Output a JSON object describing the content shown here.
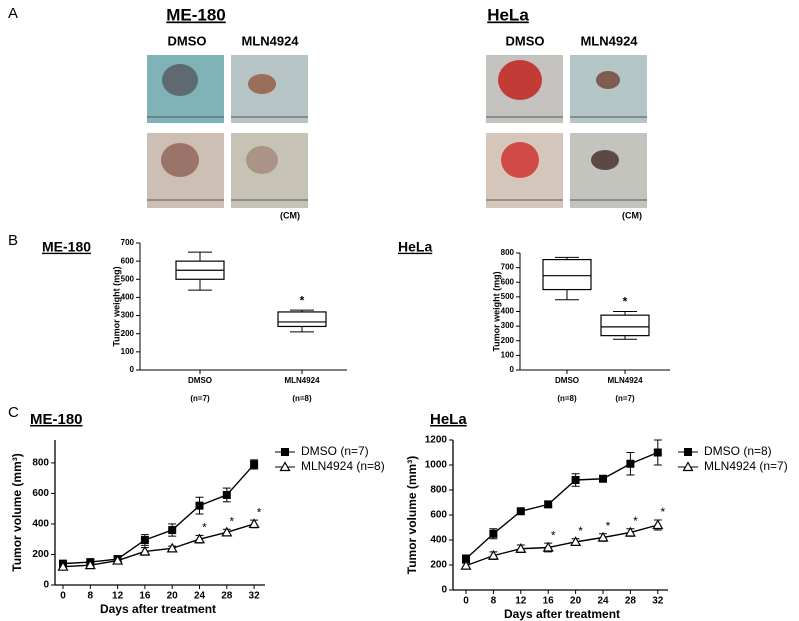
{
  "panels": {
    "a": {
      "label": "A",
      "groups": [
        {
          "title": "ME-180",
          "columns": [
            "DMSO",
            "MLN4924"
          ],
          "unit": "(CM)"
        },
        {
          "title": "HeLa",
          "columns": [
            "DMSO",
            "MLN4924"
          ],
          "unit": "(CM)"
        }
      ]
    },
    "b": "B",
    "c": "C"
  },
  "chart_data": [
    {
      "type": "box",
      "title": "ME-180",
      "ylabel": "Tumor weight (mg)",
      "categories": [
        "DMSO",
        "MLN4924"
      ],
      "sublabels": [
        "(n=7)",
        "(n=8)"
      ],
      "boxes": [
        {
          "min": 440,
          "q1": 500,
          "median": 550,
          "q3": 600,
          "max": 650
        },
        {
          "min": 210,
          "q1": 240,
          "median": 265,
          "q3": 320,
          "max": 330
        }
      ],
      "ylim": [
        0,
        700
      ],
      "yticks": [
        0,
        100,
        200,
        300,
        400,
        500,
        600,
        700
      ],
      "annotations": [
        {
          "text": "*",
          "category": 1
        }
      ]
    },
    {
      "type": "box",
      "title": "HeLa",
      "ylabel": "Tumor weight (mg)",
      "categories": [
        "DMSO",
        "MLN4924"
      ],
      "sublabels": [
        "(n=8)",
        "(n=7)"
      ],
      "boxes": [
        {
          "min": 480,
          "q1": 550,
          "median": 645,
          "q3": 755,
          "max": 770
        },
        {
          "min": 210,
          "q1": 235,
          "median": 295,
          "q3": 375,
          "max": 400
        }
      ],
      "ylim": [
        0,
        800
      ],
      "yticks": [
        0,
        100,
        200,
        300,
        400,
        500,
        600,
        700,
        800
      ],
      "annotations": [
        {
          "text": "*",
          "category": 1
        }
      ]
    },
    {
      "type": "line",
      "title": "ME-180",
      "xlabel": "Days after treatment",
      "ylabel": "Tumor volume (mm³)",
      "categories": [
        "0",
        "8",
        "12",
        "16",
        "20",
        "24",
        "28",
        "32"
      ],
      "ylim": [
        0,
        950
      ],
      "yticks": [
        0,
        200,
        400,
        600,
        800
      ],
      "series": [
        {
          "name": "DMSO (n=7)",
          "color": "#000000",
          "marker": "square",
          "marker_fill": "#000000",
          "values": [
            140,
            150,
            170,
            295,
            360,
            520,
            590,
            790
          ],
          "errors": [
            15,
            15,
            15,
            35,
            40,
            55,
            45,
            30
          ]
        },
        {
          "name": "MLN4924 (n=8)",
          "color": "#000000",
          "marker": "triangle",
          "marker_fill": "#ffffff",
          "values": [
            120,
            130,
            160,
            220,
            240,
            300,
            345,
            400
          ],
          "errors": [
            10,
            10,
            10,
            25,
            15,
            25,
            20,
            25
          ]
        }
      ],
      "annotations": [
        {
          "text": "*",
          "series": 1,
          "points": [
            5,
            6,
            7
          ]
        }
      ]
    },
    {
      "type": "line",
      "title": "HeLa",
      "xlabel": "Days after treatment",
      "ylabel": "Tumor volume (mm³)",
      "categories": [
        "0",
        "8",
        "12",
        "16",
        "20",
        "24",
        "28",
        "32"
      ],
      "ylim": [
        0,
        1200
      ],
      "yticks": [
        0,
        200,
        400,
        600,
        800,
        1000,
        1200
      ],
      "series": [
        {
          "name": "DMSO (n=8)",
          "color": "#000000",
          "marker": "square",
          "marker_fill": "#000000",
          "values": [
            250,
            450,
            630,
            685,
            880,
            890,
            1010,
            1100
          ],
          "errors": [
            30,
            40,
            20,
            25,
            50,
            25,
            90,
            100
          ]
        },
        {
          "name": "MLN4924 (n=7)",
          "color": "#000000",
          "marker": "triangle",
          "marker_fill": "#ffffff",
          "values": [
            195,
            275,
            330,
            340,
            385,
            420,
            460,
            520
          ],
          "errors": [
            20,
            30,
            30,
            35,
            25,
            30,
            30,
            40
          ]
        }
      ],
      "annotations": [
        {
          "text": "*",
          "series": 1,
          "points": [
            3,
            4,
            5,
            6,
            7
          ]
        }
      ]
    }
  ]
}
